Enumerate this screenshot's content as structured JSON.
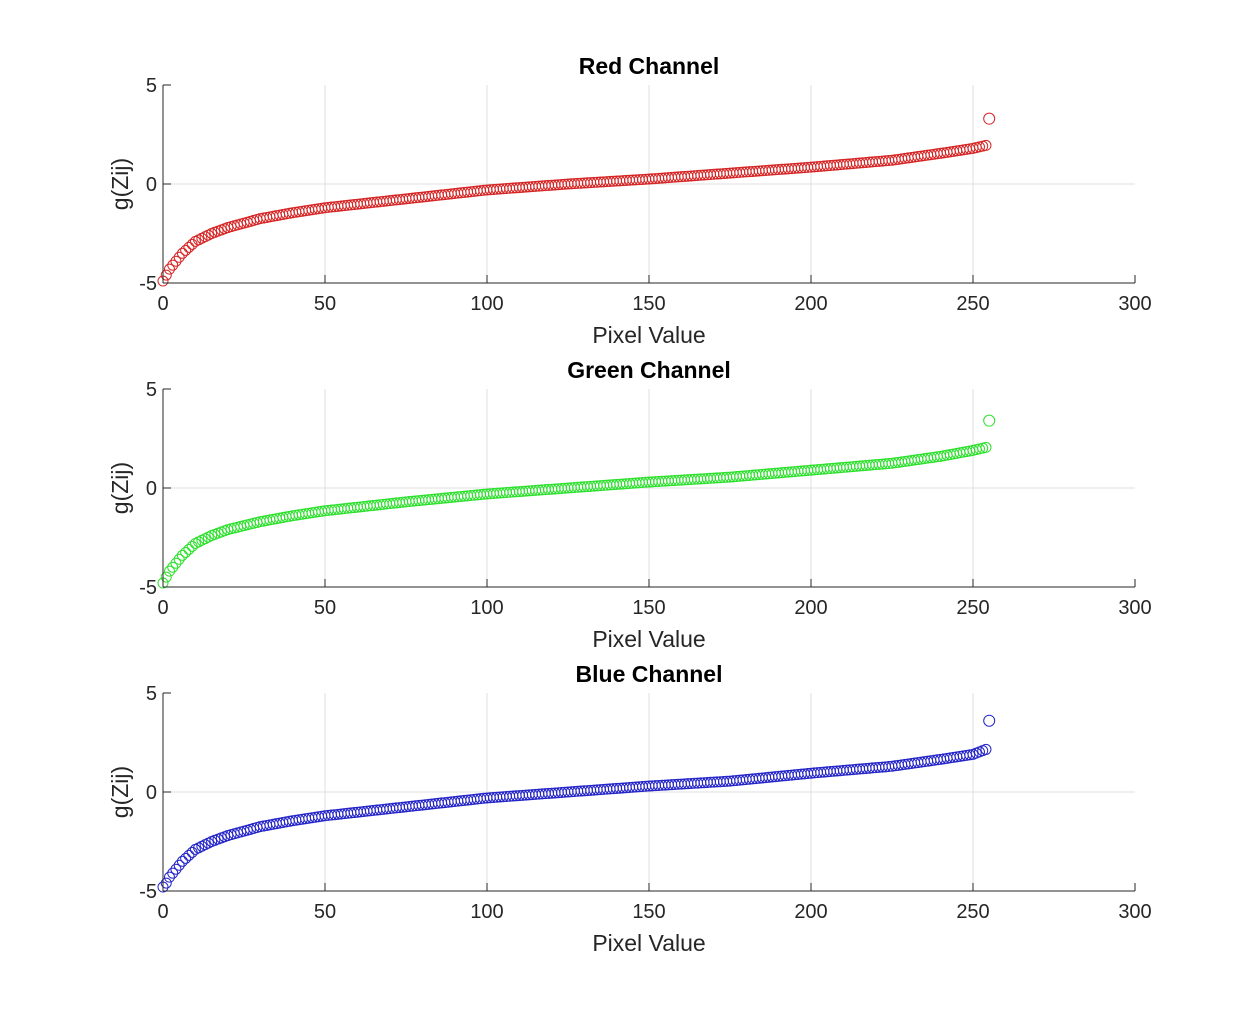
{
  "chart_data": [
    {
      "type": "scatter",
      "title": "Red Channel",
      "xlabel": "Pixel Value",
      "ylabel": "g(Zij)",
      "xlim": [
        0,
        300
      ],
      "ylim": [
        -5,
        5
      ],
      "xticks": [
        0,
        50,
        100,
        150,
        200,
        250,
        300
      ],
      "yticks": [
        -5,
        0,
        5
      ],
      "grid": true,
      "marker": "open-circle",
      "color": "#d62424",
      "curve": {
        "x_range": [
          0,
          254
        ],
        "points": [
          [
            0,
            -4.9
          ],
          [
            1,
            -4.6
          ],
          [
            2,
            -4.3
          ],
          [
            4,
            -3.9
          ],
          [
            6,
            -3.5
          ],
          [
            10,
            -2.9
          ],
          [
            15,
            -2.5
          ],
          [
            20,
            -2.2
          ],
          [
            30,
            -1.75
          ],
          [
            40,
            -1.45
          ],
          [
            50,
            -1.2
          ],
          [
            75,
            -0.75
          ],
          [
            100,
            -0.3
          ],
          [
            125,
            0.0
          ],
          [
            150,
            0.25
          ],
          [
            175,
            0.55
          ],
          [
            200,
            0.85
          ],
          [
            225,
            1.2
          ],
          [
            240,
            1.55
          ],
          [
            250,
            1.8
          ],
          [
            254,
            1.95
          ]
        ]
      },
      "outlier": [
        255,
        3.3
      ]
    },
    {
      "type": "scatter",
      "title": "Green Channel",
      "xlabel": "Pixel Value",
      "ylabel": "g(Zij)",
      "xlim": [
        0,
        300
      ],
      "ylim": [
        -5,
        5
      ],
      "xticks": [
        0,
        50,
        100,
        150,
        200,
        250,
        300
      ],
      "yticks": [
        -5,
        0,
        5
      ],
      "grid": true,
      "marker": "open-circle",
      "color": "#2de02d",
      "curve": {
        "x_range": [
          0,
          254
        ],
        "points": [
          [
            0,
            -4.8
          ],
          [
            1,
            -4.5
          ],
          [
            2,
            -4.2
          ],
          [
            4,
            -3.8
          ],
          [
            6,
            -3.4
          ],
          [
            10,
            -2.8
          ],
          [
            15,
            -2.4
          ],
          [
            20,
            -2.1
          ],
          [
            30,
            -1.7
          ],
          [
            40,
            -1.4
          ],
          [
            50,
            -1.15
          ],
          [
            75,
            -0.7
          ],
          [
            100,
            -0.3
          ],
          [
            125,
            0.0
          ],
          [
            150,
            0.3
          ],
          [
            175,
            0.55
          ],
          [
            200,
            0.9
          ],
          [
            225,
            1.25
          ],
          [
            240,
            1.6
          ],
          [
            250,
            1.9
          ],
          [
            254,
            2.05
          ]
        ]
      },
      "outlier": [
        255,
        3.4
      ]
    },
    {
      "type": "scatter",
      "title": "Blue Channel",
      "xlabel": "Pixel Value",
      "ylabel": "g(Zij)",
      "xlim": [
        0,
        300
      ],
      "ylim": [
        -5,
        5
      ],
      "xticks": [
        0,
        50,
        100,
        150,
        200,
        250,
        300
      ],
      "yticks": [
        -5,
        0,
        5
      ],
      "grid": true,
      "marker": "open-circle",
      "color": "#2424c8",
      "curve": {
        "x_range": [
          0,
          254
        ],
        "points": [
          [
            0,
            -4.8
          ],
          [
            1,
            -4.6
          ],
          [
            2,
            -4.3
          ],
          [
            4,
            -3.9
          ],
          [
            6,
            -3.5
          ],
          [
            10,
            -2.9
          ],
          [
            15,
            -2.5
          ],
          [
            20,
            -2.2
          ],
          [
            30,
            -1.75
          ],
          [
            40,
            -1.45
          ],
          [
            50,
            -1.2
          ],
          [
            75,
            -0.75
          ],
          [
            100,
            -0.3
          ],
          [
            125,
            0.0
          ],
          [
            150,
            0.3
          ],
          [
            175,
            0.55
          ],
          [
            200,
            0.95
          ],
          [
            225,
            1.3
          ],
          [
            240,
            1.65
          ],
          [
            250,
            1.9
          ],
          [
            254,
            2.15
          ]
        ]
      },
      "outlier": [
        255,
        3.6
      ]
    }
  ]
}
